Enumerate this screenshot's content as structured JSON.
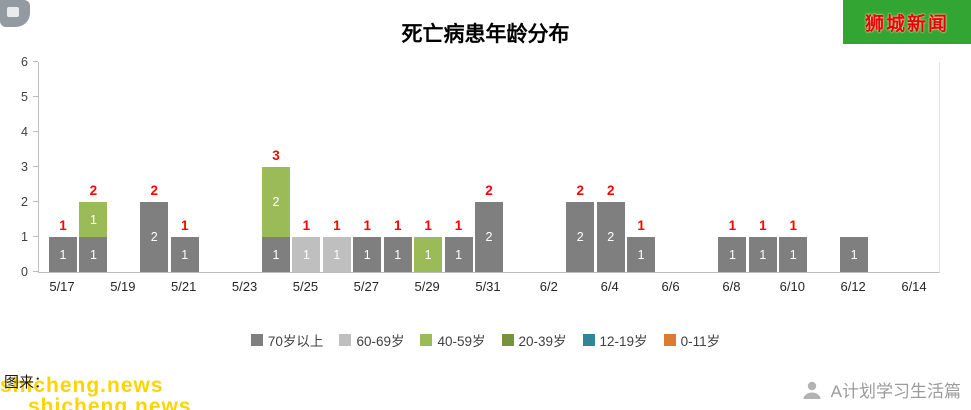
{
  "page": {
    "brand_badge": "狮城新闻",
    "watermark": "shicheng.news",
    "caption_fragment": "图来：",
    "footer_account": "A计划学习生活篇"
  },
  "chart_data": {
    "type": "bar",
    "stacked": true,
    "title": "死亡病患年龄分布",
    "xlabel": "",
    "ylabel": "",
    "ylim": [
      0,
      6
    ],
    "yticks": [
      0,
      1,
      2,
      3,
      4,
      5,
      6
    ],
    "grid": false,
    "legend_position": "bottom",
    "xtick_labels": [
      "5/17",
      "5/19",
      "5/21",
      "5/23",
      "5/25",
      "5/27",
      "5/29",
      "5/31",
      "6/2",
      "6/4",
      "6/6",
      "6/8",
      "6/10",
      "6/12",
      "6/14"
    ],
    "legend": [
      {
        "label": "70岁以上",
        "color": "#7f7f7f"
      },
      {
        "label": "60-69岁",
        "color": "#bfbfbf"
      },
      {
        "label": "40-59岁",
        "color": "#9bbb59"
      },
      {
        "label": "20-39岁",
        "color": "#76923c"
      },
      {
        "label": "12-19岁",
        "color": "#31859b"
      },
      {
        "label": "0-11岁",
        "color": "#dd7b33"
      }
    ],
    "bars": [
      {
        "day_index": 0,
        "date": "5/17",
        "segments": [
          {
            "group": "70岁以上",
            "value": 1
          }
        ],
        "total": 1
      },
      {
        "day_index": 1,
        "date": "5/18",
        "segments": [
          {
            "group": "70岁以上",
            "value": 1
          },
          {
            "group": "40-59岁",
            "value": 1
          }
        ],
        "total": 2
      },
      {
        "day_index": 3,
        "date": "5/20",
        "segments": [
          {
            "group": "70岁以上",
            "value": 2
          }
        ],
        "total": 2
      },
      {
        "day_index": 4,
        "date": "5/21",
        "segments": [
          {
            "group": "70岁以上",
            "value": 1
          }
        ],
        "total": 1
      },
      {
        "day_index": 7,
        "date": "5/24",
        "segments": [
          {
            "group": "70岁以上",
            "value": 1
          },
          {
            "group": "40-59岁",
            "value": 2
          }
        ],
        "total": 3
      },
      {
        "day_index": 8,
        "date": "5/25",
        "segments": [
          {
            "group": "60-69岁",
            "value": 1
          }
        ],
        "total": 1
      },
      {
        "day_index": 9,
        "date": "5/26",
        "segments": [
          {
            "group": "60-69岁",
            "value": 1
          }
        ],
        "total": 1
      },
      {
        "day_index": 10,
        "date": "5/27",
        "segments": [
          {
            "group": "70岁以上",
            "value": 1
          }
        ],
        "total": 1
      },
      {
        "day_index": 11,
        "date": "5/28",
        "segments": [
          {
            "group": "70岁以上",
            "value": 1
          }
        ],
        "total": 1
      },
      {
        "day_index": 12,
        "date": "5/29",
        "segments": [
          {
            "group": "40-59岁",
            "value": 1
          }
        ],
        "total": 1
      },
      {
        "day_index": 13,
        "date": "5/30",
        "segments": [
          {
            "group": "70岁以上",
            "value": 1
          }
        ],
        "total": 1
      },
      {
        "day_index": 14,
        "date": "5/31",
        "segments": [
          {
            "group": "70岁以上",
            "value": 2
          }
        ],
        "total": 2
      },
      {
        "day_index": 17,
        "date": "6/3",
        "segments": [
          {
            "group": "70岁以上",
            "value": 2
          }
        ],
        "total": 2
      },
      {
        "day_index": 18,
        "date": "6/4",
        "segments": [
          {
            "group": "70岁以上",
            "value": 2
          }
        ],
        "total": 2
      },
      {
        "day_index": 19,
        "date": "6/5",
        "segments": [
          {
            "group": "70岁以上",
            "value": 1
          }
        ],
        "total": 1
      },
      {
        "day_index": 22,
        "date": "6/8",
        "segments": [
          {
            "group": "70岁以上",
            "value": 1
          }
        ],
        "total": 1
      },
      {
        "day_index": 23,
        "date": "6/9",
        "segments": [
          {
            "group": "70岁以上",
            "value": 1
          }
        ],
        "total": 1
      },
      {
        "day_index": 24,
        "date": "6/10",
        "segments": [
          {
            "group": "70岁以上",
            "value": 1
          }
        ],
        "total": 1
      },
      {
        "day_index": 26,
        "date": "6/12",
        "segments": [
          {
            "group": "70岁以上",
            "value": 1
          }
        ],
        "total": 1,
        "show_total": false
      }
    ]
  }
}
